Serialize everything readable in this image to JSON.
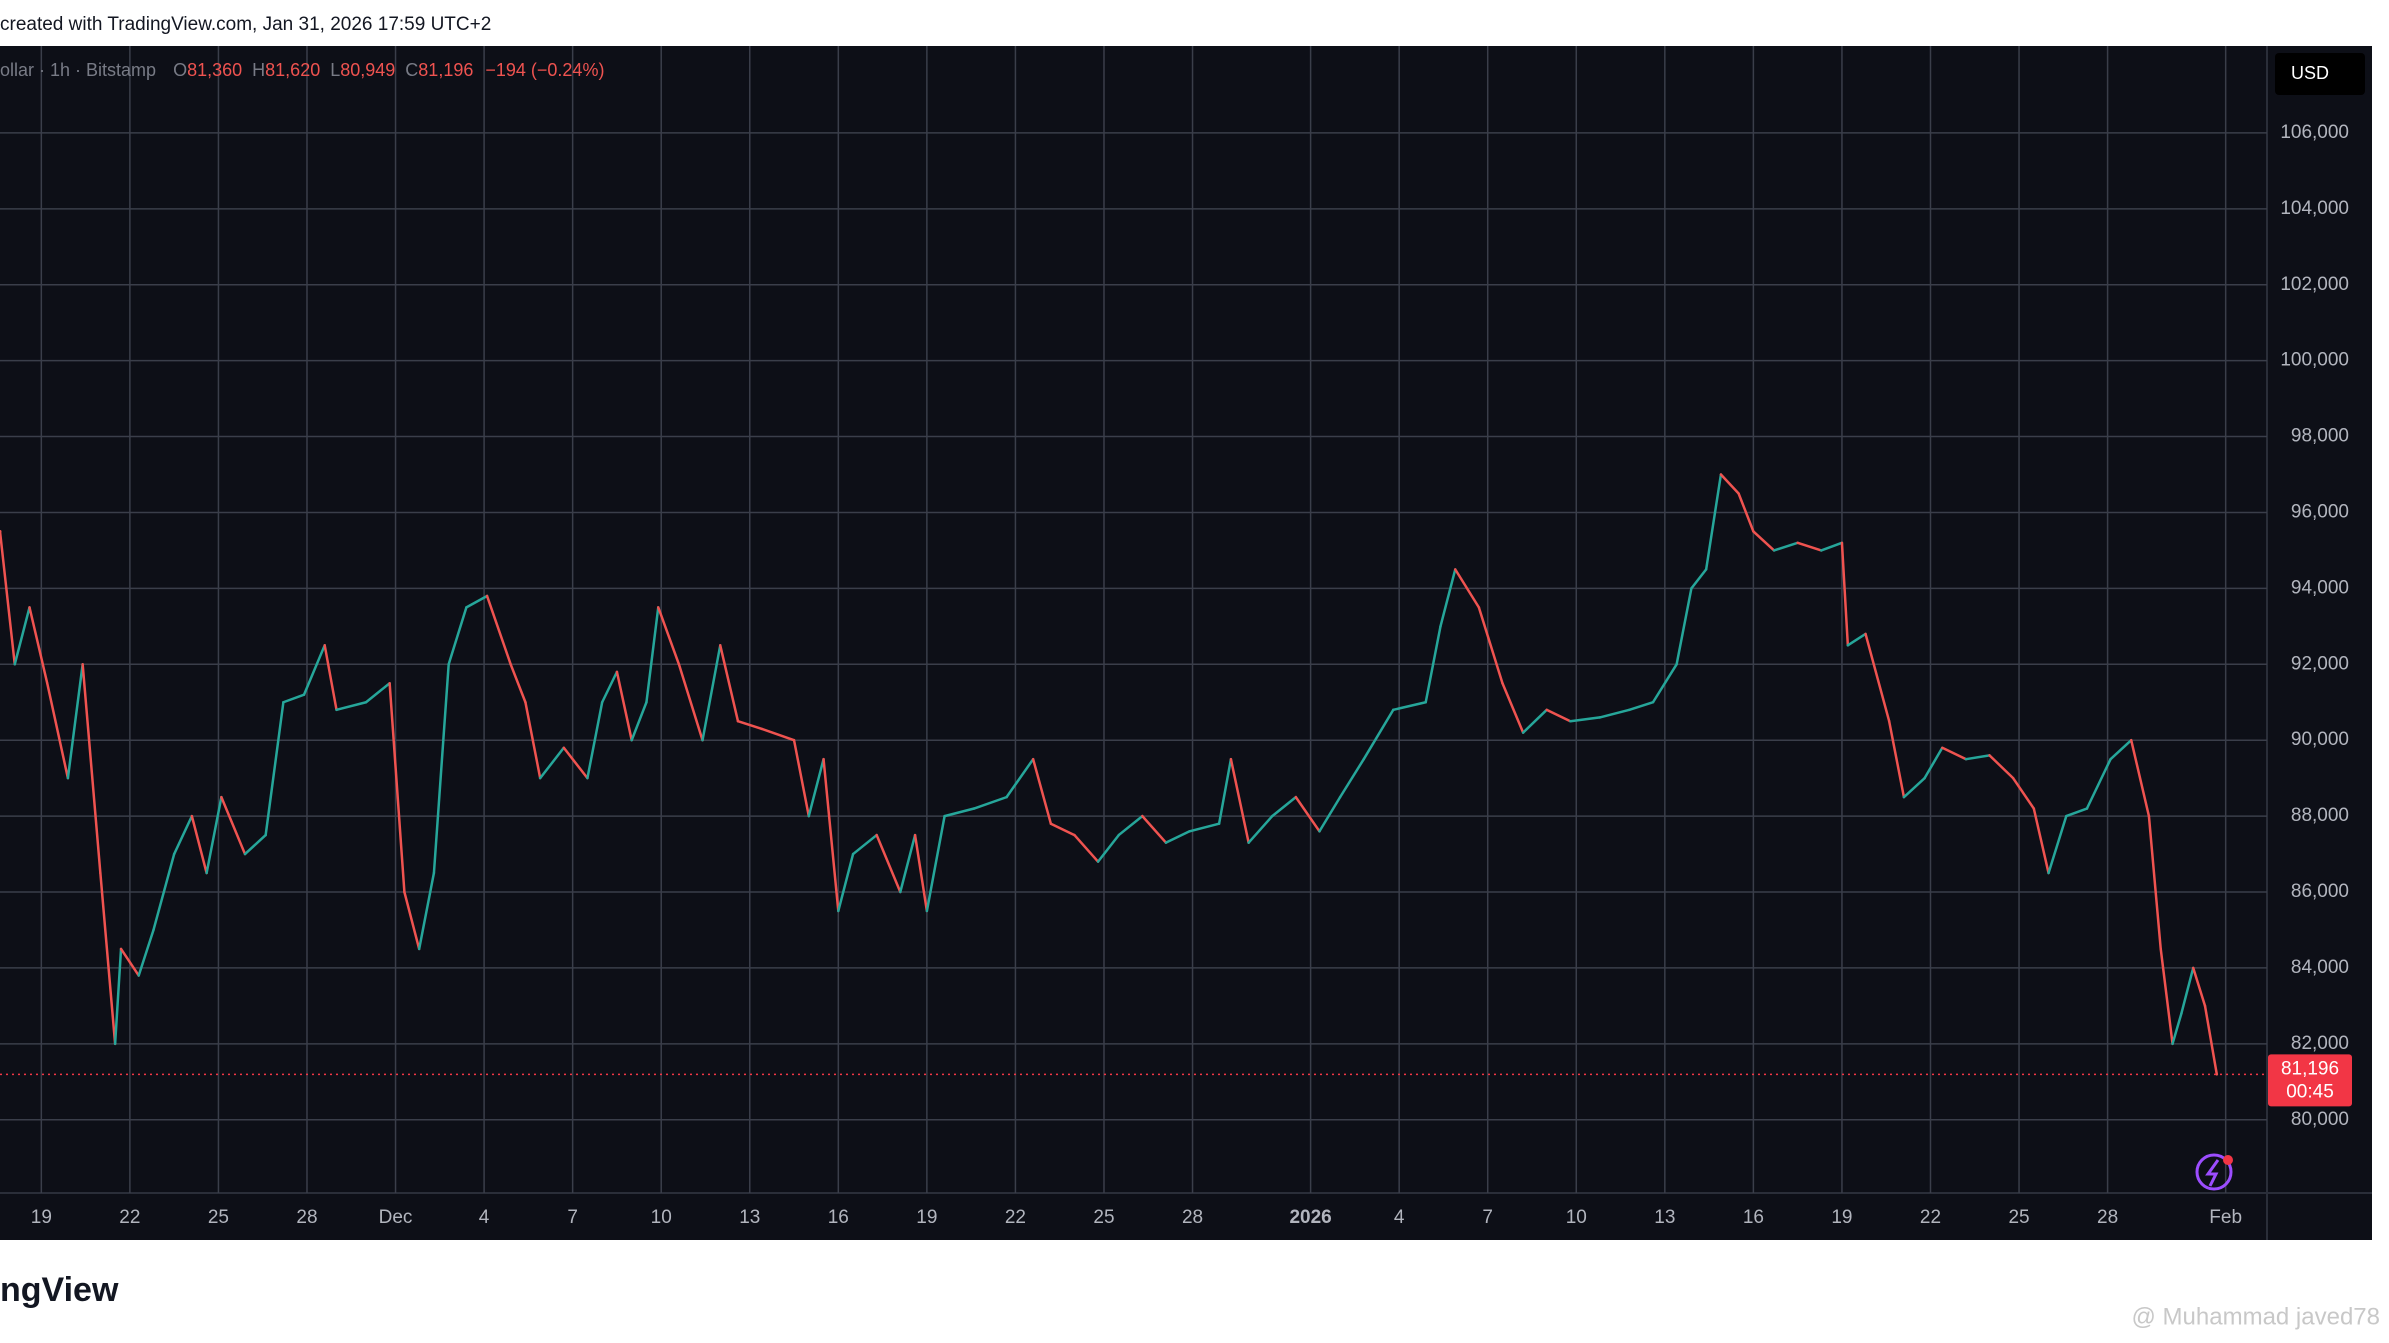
{
  "header": "created with TradingView.com, Jan 31, 2026 17:59 UTC+2",
  "logo": "ngView",
  "watermark": "@ Muhammad javed78",
  "chart_data": {
    "type": "line",
    "legend": {
      "symbol": "ollar · 1h · Bitstamp",
      "fields": [
        {
          "label": "O",
          "value": "81,360"
        },
        {
          "label": "H",
          "value": "81,620"
        },
        {
          "label": "L",
          "value": "80,949"
        },
        {
          "label": "C",
          "value": "81,196"
        }
      ],
      "change": "−194 (−0.24%)"
    },
    "currency": "USD",
    "last_price_label": "81,196",
    "countdown": "00:45",
    "up_color": "#26a69a",
    "down_color": "#ef5350",
    "price_line_color": "#f23645",
    "grid": true,
    "x": [
      -1.4,
      -0.9,
      -0.4,
      0.2,
      0.9,
      1.4,
      2.0,
      2.5,
      2.7,
      3.3,
      3.8,
      4.5,
      5.1,
      5.6,
      6.1,
      6.9,
      7.6,
      8.2,
      8.9,
      9.6,
      10.0,
      11.0,
      11.8,
      12.3,
      12.8,
      13.3,
      13.8,
      14.4,
      15.1,
      15.9,
      16.4,
      16.9,
      17.7,
      18.5,
      19.0,
      19.5,
      20.0,
      20.5,
      20.9,
      21.6,
      22.4,
      23.0,
      23.6,
      24.4,
      25.5,
      26.0,
      26.5,
      27.0,
      27.5,
      28.3,
      29.1,
      29.6,
      30.0,
      30.6,
      31.6,
      32.7,
      33.6,
      34.2,
      35.0,
      35.8,
      36.5,
      37.3,
      38.1,
      38.9,
      39.9,
      40.3,
      40.9,
      41.7,
      42.5,
      43.3,
      44.0,
      44.8,
      45.8,
      46.9,
      47.4,
      47.9,
      48.7,
      49.5,
      50.2,
      51.0,
      51.8,
      52.8,
      53.8,
      54.6,
      55.4,
      55.9,
      56.4,
      56.9,
      57.5,
      58.0,
      58.7,
      59.5,
      60.3,
      61.0,
      61.2,
      61.8,
      62.6,
      63.1,
      63.8,
      64.4,
      65.2,
      66.0,
      66.8,
      67.5,
      68.0,
      68.6,
      69.3,
      70.1,
      70.8,
      71.4,
      71.8,
      72.2,
      72.5,
      72.9,
      73.3,
      73.7
    ],
    "values": [
      95500,
      92000,
      93500,
      91500,
      89000,
      92000,
      86500,
      82000,
      84500,
      83800,
      85000,
      87000,
      88000,
      86500,
      88500,
      87000,
      87500,
      91000,
      91200,
      92500,
      90800,
      91000,
      91500,
      86000,
      84500,
      86500,
      92000,
      93500,
      93800,
      92000,
      91000,
      89000,
      89800,
      89000,
      91000,
      91800,
      90000,
      91000,
      93500,
      92000,
      90000,
      92500,
      90500,
      90300,
      90000,
      88000,
      89500,
      85500,
      87000,
      87500,
      86000,
      87500,
      85500,
      88000,
      88200,
      88500,
      89500,
      87800,
      87500,
      86800,
      87500,
      88000,
      87300,
      87600,
      87800,
      89500,
      87300,
      88000,
      88500,
      87600,
      88500,
      89500,
      90800,
      91000,
      93000,
      94500,
      93500,
      91500,
      90200,
      90800,
      90500,
      90600,
      90800,
      91000,
      92000,
      94000,
      94500,
      97000,
      96500,
      95500,
      95000,
      95200,
      95000,
      95200,
      92500,
      92800,
      90500,
      88500,
      89000,
      89800,
      89500,
      89600,
      89000,
      88200,
      86500,
      88000,
      88200,
      89500,
      90000,
      88000,
      84500,
      82000,
      82800,
      84000,
      83000,
      81196
    ],
    "xlim": [
      -1.4,
      75.4
    ],
    "xticks": [
      {
        "value": 0,
        "label": "19"
      },
      {
        "value": 3,
        "label": "22"
      },
      {
        "value": 6,
        "label": "25"
      },
      {
        "value": 9,
        "label": "28"
      },
      {
        "value": 12,
        "label": "Dec"
      },
      {
        "value": 15,
        "label": "4"
      },
      {
        "value": 18,
        "label": "7"
      },
      {
        "value": 21,
        "label": "10"
      },
      {
        "value": 24,
        "label": "13"
      },
      {
        "value": 27,
        "label": "16"
      },
      {
        "value": 30,
        "label": "19"
      },
      {
        "value": 33,
        "label": "22"
      },
      {
        "value": 36,
        "label": "25"
      },
      {
        "value": 39,
        "label": "28"
      },
      {
        "value": 43,
        "label": "2026"
      },
      {
        "value": 46,
        "label": "4"
      },
      {
        "value": 49,
        "label": "7"
      },
      {
        "value": 52,
        "label": "10"
      },
      {
        "value": 55,
        "label": "13"
      },
      {
        "value": 58,
        "label": "16"
      },
      {
        "value": 61,
        "label": "19"
      },
      {
        "value": 64,
        "label": "22"
      },
      {
        "value": 67,
        "label": "25"
      },
      {
        "value": 70,
        "label": "28"
      },
      {
        "value": 74,
        "label": "Feb"
      }
    ],
    "ylim": [
      78070,
      108290
    ],
    "yticks": [
      {
        "value": 80000,
        "label": "80,000"
      },
      {
        "value": 82000,
        "label": "82,000"
      },
      {
        "value": 84000,
        "label": "84,000"
      },
      {
        "value": 86000,
        "label": "86,000"
      },
      {
        "value": 88000,
        "label": "88,000"
      },
      {
        "value": 90000,
        "label": "90,000"
      },
      {
        "value": 92000,
        "label": "92,000"
      },
      {
        "value": 94000,
        "label": "94,000"
      },
      {
        "value": 96000,
        "label": "96,000"
      },
      {
        "value": 98000,
        "label": "98,000"
      },
      {
        "value": 100000,
        "label": "100,000"
      },
      {
        "value": 102000,
        "label": "102,000"
      },
      {
        "value": 104000,
        "label": "104,000"
      },
      {
        "value": 106000,
        "label": "106,000"
      }
    ]
  }
}
